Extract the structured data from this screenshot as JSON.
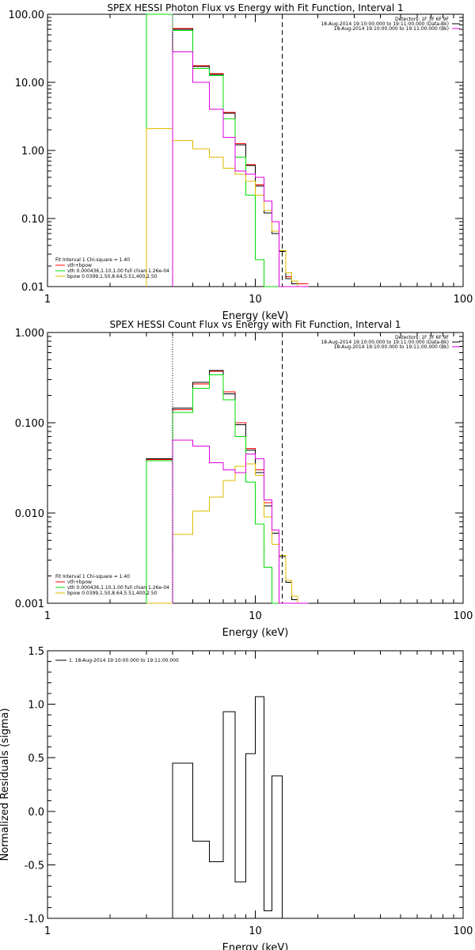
{
  "colors": {
    "data": "#000000",
    "total": "#ff0000",
    "vth": "#00dd00",
    "bpow": "#ddbb00",
    "bk": "#dd00dd"
  },
  "chart_data": [
    {
      "type": "line",
      "id": "photon",
      "title": "SPEX HESSI Photon Flux vs Energy with Fit Function, Interval 1",
      "xlabel": "Energy (keV)",
      "ylabel": "",
      "xscale": "log",
      "yscale": "log",
      "xlim": [
        1,
        100
      ],
      "ylim": [
        0.01,
        100
      ],
      "xticks": [
        {
          "v": 1,
          "label": "1"
        },
        {
          "v": 10,
          "label": "10"
        },
        {
          "v": 100,
          "label": "100"
        }
      ],
      "yticks": [
        {
          "v": 0.01,
          "label": "0.01"
        },
        {
          "v": 0.1,
          "label": "0.10"
        },
        {
          "v": 1,
          "label": "1.00"
        },
        {
          "v": 10,
          "label": "10.00"
        },
        {
          "v": 100,
          "label": "100.00"
        }
      ],
      "vlines": [
        {
          "x": 4.0,
          "style": "dotted",
          "color": "#dd00dd"
        },
        {
          "x": 13.5,
          "style": "dashed",
          "color": "#000000"
        }
      ],
      "info_lines": [
        "Detectors: 1F 3F 6F 9F",
        "18-Aug-2014 19:10:00.000 to 19:11:00.000 (Data-Bk)",
        "18-Aug-2014 19:10:00.000 to 19:11:00.000 (Bk)"
      ],
      "legend_title": "Fit Interval 1   Chi-square = 1.40",
      "legend": [
        "vth+bpow",
        "vth 0.000436,1.10,1.00  full chian 1.26e-04",
        "bpow 0.0399,1.50,8.64,5.51,400,2.50"
      ],
      "edges": [
        3.0,
        4.0,
        5.0,
        6.0,
        7.0,
        8.0,
        9.0,
        10.0,
        11.0,
        12.0,
        13.0,
        14.0,
        15.0,
        16.0,
        18.0
      ],
      "series": [
        {
          "name": "vth+bpow",
          "color_key": "total",
          "values": [
            null,
            62,
            17.5,
            13.5,
            3.6,
            1.25,
            0.62,
            0.31,
            0.13,
            0.065,
            0.034,
            0.014,
            0.012,
            0.011
          ]
        },
        {
          "name": "",
          "color_key": "data",
          "values": [
            null,
            60,
            17,
            13,
            3.5,
            1.2,
            0.6,
            0.3,
            0.12,
            0.06,
            0.033,
            0.013,
            0.011,
            0.01
          ]
        },
        {
          "name": "vth",
          "color_key": "vth",
          "values": [
            100,
            58,
            16,
            12.5,
            2.9,
            0.8,
            0.22,
            0.025,
            0.01,
            0.01,
            0.01,
            0.01,
            0.01,
            0.01
          ]
        },
        {
          "name": "bpow",
          "color_key": "bpow",
          "values": [
            2.1,
            1.4,
            1.05,
            0.8,
            0.55,
            0.45,
            0.35,
            0.22,
            0.13,
            0.065,
            0.034,
            0.016,
            0.012,
            0.01
          ]
        },
        {
          "name": "",
          "color_key": "bk",
          "values": [
            null,
            28,
            10,
            4.0,
            1.55,
            0.5,
            0.45,
            0.4,
            0.18,
            0.09,
            0.01,
            0.01,
            0.01,
            0.01
          ]
        }
      ]
    },
    {
      "type": "line",
      "id": "count",
      "title": "SPEX HESSI Count Flux vs Energy with Fit Function, Interval 1",
      "xlabel": "Energy (keV)",
      "ylabel": "",
      "xscale": "log",
      "yscale": "log",
      "xlim": [
        1,
        100
      ],
      "ylim": [
        0.001,
        1
      ],
      "xticks": [
        {
          "v": 1,
          "label": "1"
        },
        {
          "v": 10,
          "label": "10"
        },
        {
          "v": 100,
          "label": "100"
        }
      ],
      "yticks": [
        {
          "v": 0.001,
          "label": "0.001"
        },
        {
          "v": 0.01,
          "label": "0.010"
        },
        {
          "v": 0.1,
          "label": "0.100"
        },
        {
          "v": 1,
          "label": "1.000"
        }
      ],
      "vlines": [
        {
          "x": 4.0,
          "style": "dotted",
          "color": "#000000"
        },
        {
          "x": 13.5,
          "style": "dashed",
          "color": "#000000"
        }
      ],
      "info_lines": [
        "Detectors: 1F 3F 6F 9F",
        "18-Aug-2014 19:10:00.000 to 19:11:00.000 (Data-Bk)",
        "18-Aug-2014 19:10:00.000 to 19:11:00.000 (Bk)"
      ],
      "legend_title": "Fit Interval 1   Chi-square = 1.40",
      "legend": [
        "vth+bpow",
        "vth 0.000436,1.10,1.00  full chian 1.26e-04",
        "bpow 0.0399,1.50,8.64,5.51,400,2.50"
      ],
      "edges": [
        3.0,
        4.0,
        5.0,
        6.0,
        7.0,
        8.0,
        9.0,
        10.0,
        11.0,
        12.0,
        13.0,
        14.0,
        15.0,
        16.0,
        18.0
      ],
      "series": [
        {
          "name": "vth+bpow",
          "color_key": "total",
          "values": [
            0.039,
            0.14,
            0.27,
            0.37,
            0.22,
            0.1,
            0.052,
            0.03,
            0.013,
            0.0065,
            0.0034,
            0.0018,
            0.0012,
            0.001
          ]
        },
        {
          "name": "",
          "color_key": "data",
          "values": [
            0.04,
            0.145,
            0.28,
            0.38,
            0.21,
            0.095,
            0.05,
            0.028,
            0.012,
            0.006,
            0.0033,
            0.0017,
            0.0011,
            0.001
          ]
        },
        {
          "name": "vth",
          "color_key": "vth",
          "values": [
            0.038,
            0.13,
            0.24,
            0.34,
            0.18,
            0.07,
            0.022,
            0.0075,
            0.0025,
            0.001,
            0.001,
            0.001,
            0.001,
            0.001
          ]
        },
        {
          "name": "bpow",
          "color_key": "bpow",
          "values": [
            0.001,
            0.0058,
            0.0105,
            0.015,
            0.023,
            0.033,
            0.035,
            0.026,
            0.009,
            0.0045,
            0.0034,
            0.0018,
            0.0012,
            0.001
          ]
        },
        {
          "name": "",
          "color_key": "bk",
          "values": [
            null,
            0.064,
            0.055,
            0.036,
            0.03,
            0.028,
            0.045,
            0.04,
            0.014,
            0.0065,
            0.001,
            0.001,
            0.001,
            0.001
          ]
        }
      ]
    },
    {
      "type": "line",
      "id": "resid",
      "title": "",
      "xlabel": "Energy (keV)",
      "ylabel": "Normalized Residuals (sigma)",
      "xscale": "log",
      "yscale": "linear",
      "xlim": [
        1,
        100
      ],
      "ylim": [
        -1.0,
        1.5
      ],
      "xticks": [
        {
          "v": 1,
          "label": "1"
        },
        {
          "v": 10,
          "label": "10"
        },
        {
          "v": 100,
          "label": "100"
        }
      ],
      "yticks": [
        {
          "v": -1.0,
          "label": "-1.0"
        },
        {
          "v": -0.5,
          "label": "-0.5"
        },
        {
          "v": 0.0,
          "label": "0.0"
        },
        {
          "v": 0.5,
          "label": "0.5"
        },
        {
          "v": 1.0,
          "label": "1.0"
        },
        {
          "v": 1.5,
          "label": "1.5"
        }
      ],
      "legend": [
        "1. 18-Aug-2014 19:10:00.000 to 19:11:00.000"
      ],
      "edges": [
        4.0,
        5.0,
        6.0,
        7.0,
        8.0,
        9.0,
        10.0,
        11.0,
        12.0,
        13.5
      ],
      "series": [
        {
          "name": "1. 18-Aug-2014 19:10:00.000 to 19:11:00.000",
          "color_key": "data",
          "values": [
            0.45,
            -0.28,
            -0.47,
            0.93,
            -0.66,
            0.54,
            1.07,
            -0.93,
            0.33
          ]
        }
      ]
    }
  ]
}
